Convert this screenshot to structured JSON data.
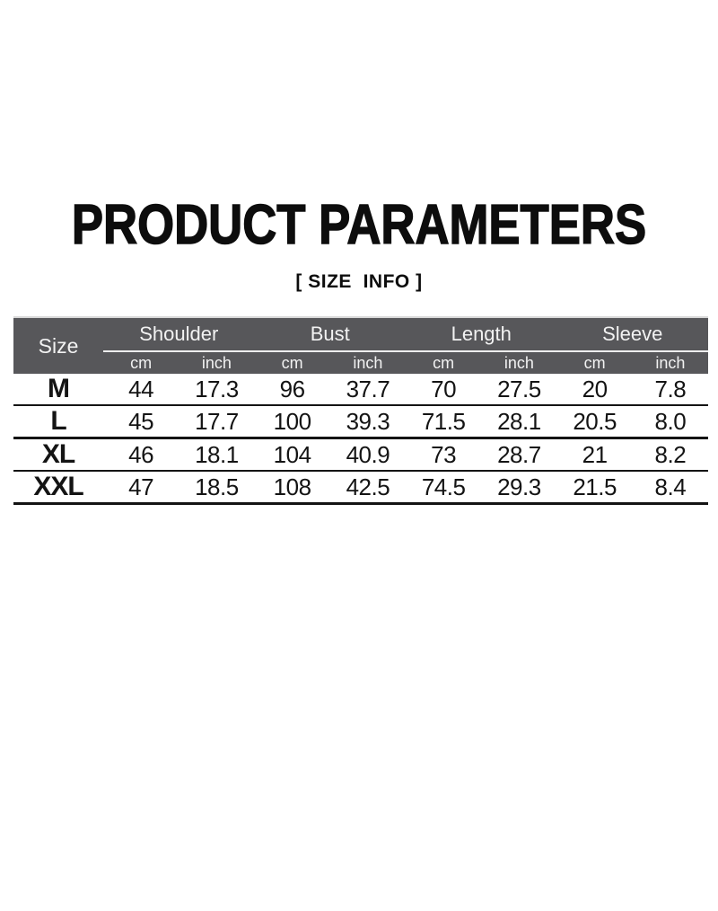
{
  "header": {
    "title": "PRODUCT PARAMETERS",
    "subtitle": "[ SIZE  INFO ]"
  },
  "size_table": {
    "size_label": "Size",
    "groups": [
      "Shoulder",
      "Bust",
      "Length",
      "Sleeve"
    ],
    "units": [
      "cm",
      "inch"
    ],
    "rows": [
      {
        "size": "M",
        "values": [
          "44",
          "17.3",
          "96",
          "37.7",
          "70",
          "27.5",
          "20",
          "7.8"
        ]
      },
      {
        "size": "L",
        "values": [
          "45",
          "17.7",
          "100",
          "39.3",
          "71.5",
          "28.1",
          "20.5",
          "8.0"
        ]
      },
      {
        "size": "XL",
        "values": [
          "46",
          "18.1",
          "104",
          "40.9",
          "73",
          "28.7",
          "21",
          "8.2"
        ]
      },
      {
        "size": "XXL",
        "values": [
          "47",
          "18.5",
          "108",
          "42.5",
          "74.5",
          "29.3",
          "21.5",
          "8.4"
        ]
      }
    ],
    "colors": {
      "header_bg": "#57575a",
      "header_text": "#f2f2f2",
      "header_underline": "#eeeeee",
      "row_separator": "#141414",
      "title_text": "#0d0d0d",
      "page_bg": "#ffffff"
    }
  },
  "chart_data": {
    "type": "table",
    "title": "PRODUCT PARAMETERS",
    "subtitle": "[ SIZE INFO ]",
    "column_groups": [
      "Shoulder",
      "Bust",
      "Length",
      "Sleeve"
    ],
    "units_per_group": [
      "cm",
      "inch"
    ],
    "columns": [
      "Size",
      "Shoulder cm",
      "Shoulder inch",
      "Bust cm",
      "Bust inch",
      "Length cm",
      "Length inch",
      "Sleeve cm",
      "Sleeve inch"
    ],
    "rows": [
      [
        "M",
        44,
        17.3,
        96,
        37.7,
        70,
        27.5,
        20,
        7.8
      ],
      [
        "L",
        45,
        17.7,
        100,
        39.3,
        71.5,
        28.1,
        20.5,
        8.0
      ],
      [
        "XL",
        46,
        18.1,
        104,
        40.9,
        73,
        28.7,
        21,
        8.2
      ],
      [
        "XXL",
        47,
        18.5,
        108,
        42.5,
        74.5,
        29.3,
        21.5,
        8.4
      ]
    ],
    "legend_position": "none",
    "grid": "horizontal-rules-only"
  }
}
